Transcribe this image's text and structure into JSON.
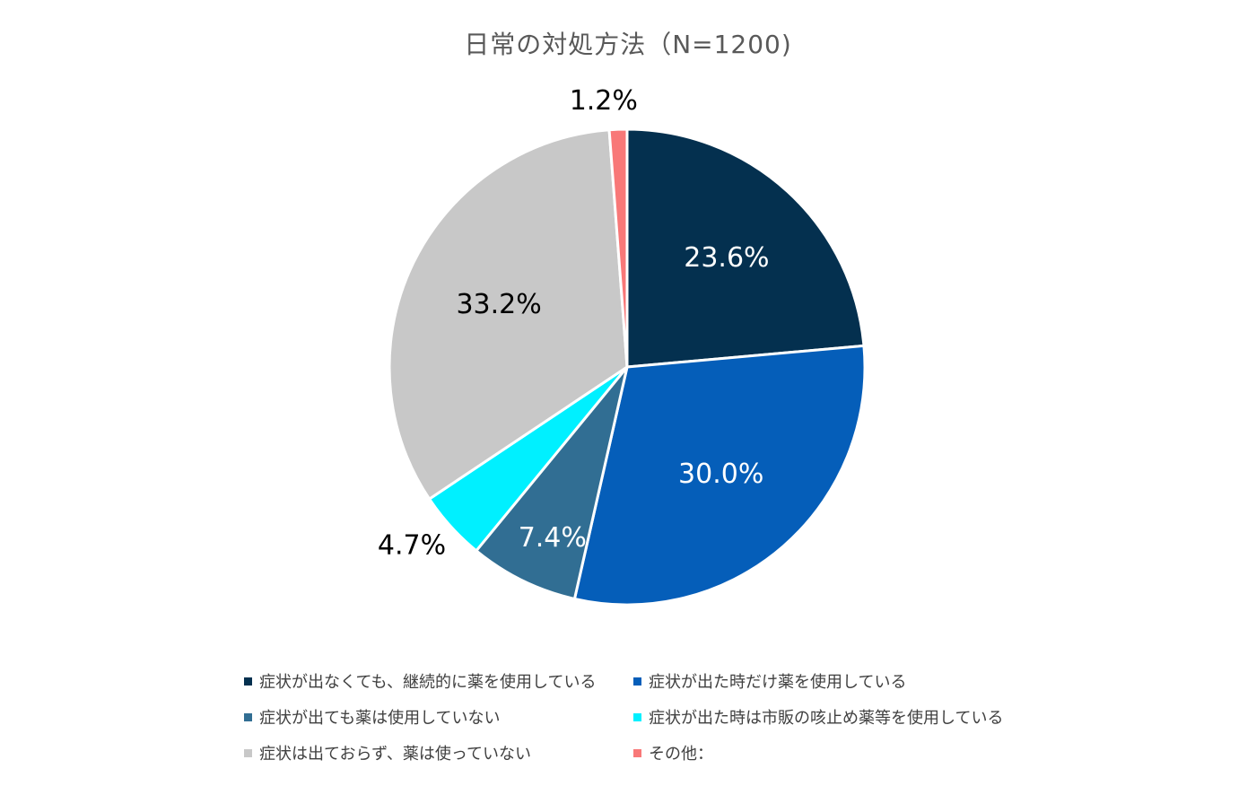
{
  "chart_data": {
    "type": "pie",
    "title": "日常の対処方法（N=1200)",
    "slices": [
      {
        "label": "症状が出なくても、継続的に薬を使用している",
        "value": 23.6,
        "display": "23.6%",
        "color": "#04304F",
        "label_color": "#ffffff"
      },
      {
        "label": "症状が出た時だけ薬を使用している",
        "value": 30.0,
        "display": "30.0%",
        "color": "#055EB9",
        "label_color": "#ffffff"
      },
      {
        "label": "症状が出ても薬は使用していない",
        "value": 7.4,
        "display": "7.4%",
        "color": "#316E93",
        "label_color": "#ffffff"
      },
      {
        "label": "症状が出た時は市販の咳止め薬等を使用している",
        "value": 4.7,
        "display": "4.7%",
        "color": "#00F0FF",
        "label_color": "#000000"
      },
      {
        "label": "症状は出ておらず、薬は使っていない",
        "value": 33.2,
        "display": "33.2%",
        "color": "#C8C8C8",
        "label_color": "#000000"
      },
      {
        "label": "その他：",
        "value": 1.2,
        "display": "1.2%",
        "color": "#F87878",
        "label_color": "#000000"
      }
    ],
    "legend_position": "bottom"
  }
}
